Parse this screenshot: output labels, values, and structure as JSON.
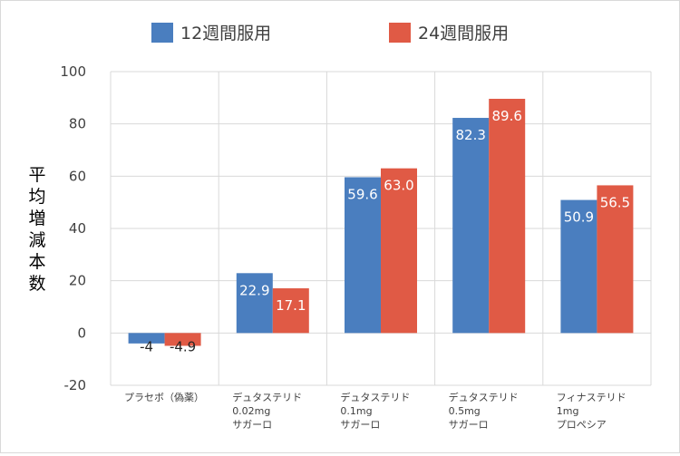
{
  "chart_data": {
    "type": "bar",
    "title": "",
    "xlabel": "",
    "ylabel": "平均増減本数",
    "ylim": [
      -20,
      100
    ],
    "yticks": [
      -20,
      0,
      20,
      40,
      60,
      80,
      100
    ],
    "grid": true,
    "legend_position": "top",
    "categories": [
      [
        "プラセボ（偽薬）"
      ],
      [
        "デュタステリド",
        "0.02mg",
        "サガーロ"
      ],
      [
        "デュタステリド",
        "0.1mg",
        "サガーロ"
      ],
      [
        "デュタステリド",
        "0.5mg",
        "サガーロ"
      ],
      [
        "フィナステリド",
        "1mg",
        "プロペシア"
      ]
    ],
    "series": [
      {
        "name": "12週間服用",
        "color": "#4a7ebf",
        "values": [
          -4,
          22.9,
          59.6,
          82.3,
          50.9
        ],
        "labels": [
          "-4",
          "22.9",
          "59.6",
          "82.3",
          "50.9"
        ]
      },
      {
        "name": "24週間服用",
        "color": "#e05a45",
        "values": [
          -4.9,
          17.1,
          63.0,
          89.6,
          56.5
        ],
        "labels": [
          "-4.9",
          "17.1",
          "63.0",
          "89.6",
          "56.5"
        ]
      }
    ]
  }
}
